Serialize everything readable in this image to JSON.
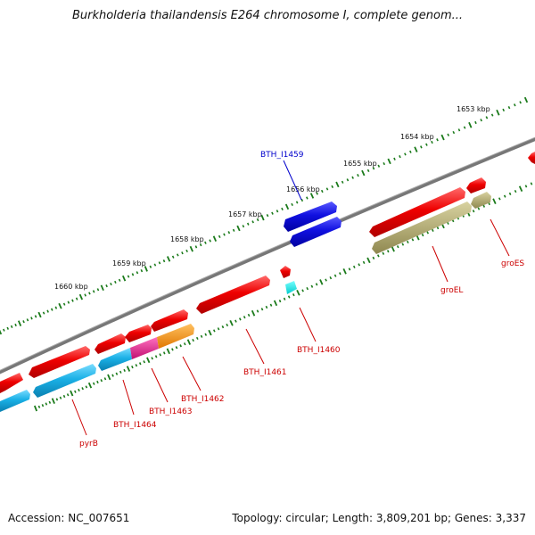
{
  "title": "Burkholderia thailandensis E264 chromosome I, complete genom...",
  "footer": {
    "accession": "Accession: NC_007651",
    "topology": "Topology: circular; Length: 3,809,201 bp; Genes: 3,337"
  },
  "scale_labels": [
    "1653 kbp",
    "1654 kbp",
    "1655 kbp",
    "1656 kbp",
    "1657 kbp",
    "1658 kbp",
    "1659 kbp",
    "1660 kbp"
  ],
  "gene_labels": [
    "BTH_I1459",
    "groES",
    "groEL",
    "BTH_I1460",
    "BTH_I1461",
    "BTH_I1462",
    "BTH_I1463",
    "BTH_I1464",
    "pyrB"
  ],
  "colors": {
    "backbone": "#7f7f7f",
    "tick": "#1a7a1a",
    "cds": "#e80000",
    "highlight_gene": "#1010dd",
    "cyan": "#18b4e8",
    "magenta": "#e0218a",
    "orange": "#f0900a",
    "olive": "#b8b070",
    "label_red": "#cc0000",
    "label_blue": "#0000cc"
  }
}
